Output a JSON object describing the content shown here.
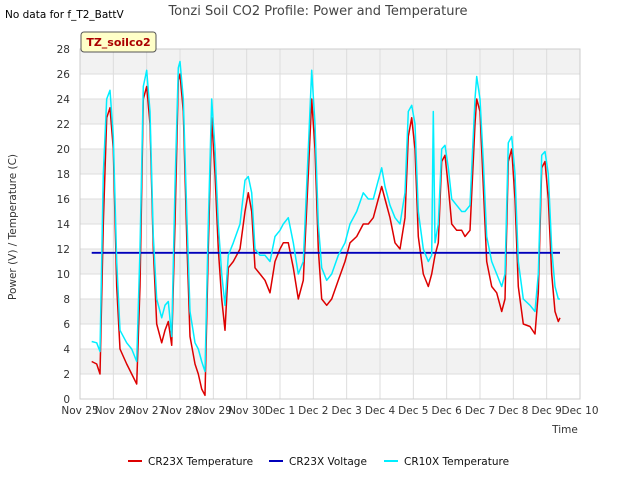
{
  "chart_data": {
    "type": "line",
    "title": "Tonzi Soil CO2 Profile: Power and Temperature",
    "no_data_note": "No data for f_T2_BattV",
    "badge": "TZ_soilco2",
    "xlabel": "Time",
    "ylabel": "Power (V) / Temperature (C)",
    "xlim": [
      0,
      15
    ],
    "ylim": [
      0,
      28
    ],
    "x_ticks": [
      {
        "x": 0,
        "label": "Nov 25"
      },
      {
        "x": 1,
        "label": "Nov 26"
      },
      {
        "x": 2,
        "label": "Nov 27"
      },
      {
        "x": 3,
        "label": "Nov 28"
      },
      {
        "x": 4,
        "label": "Nov 29"
      },
      {
        "x": 5,
        "label": "Nov 30"
      },
      {
        "x": 6,
        "label": "Dec 1"
      },
      {
        "x": 7,
        "label": "Dec 2"
      },
      {
        "x": 8,
        "label": "Dec 3"
      },
      {
        "x": 9,
        "label": "Dec 4"
      },
      {
        "x": 10,
        "label": "Dec 5"
      },
      {
        "x": 11,
        "label": "Dec 6"
      },
      {
        "x": 12,
        "label": "Dec 7"
      },
      {
        "x": 13,
        "label": "Dec 8"
      },
      {
        "x": 14,
        "label": "Dec 9"
      },
      {
        "x": 15,
        "label": "Dec 10"
      }
    ],
    "y_ticks": [
      0,
      2,
      4,
      6,
      8,
      10,
      12,
      14,
      16,
      18,
      20,
      22,
      24,
      26,
      28
    ],
    "grid": true,
    "legend_position": "bottom",
    "series": [
      {
        "name": "CR23X Temperature",
        "color": "#dd0000",
        "points": [
          [
            0.35,
            3.0
          ],
          [
            0.5,
            2.8
          ],
          [
            0.6,
            2.0
          ],
          [
            0.7,
            14.0
          ],
          [
            0.8,
            22.5
          ],
          [
            0.9,
            23.3
          ],
          [
            1.0,
            20.0
          ],
          [
            1.1,
            9.0
          ],
          [
            1.2,
            4.0
          ],
          [
            1.4,
            2.8
          ],
          [
            1.55,
            2.0
          ],
          [
            1.7,
            1.2
          ],
          [
            1.8,
            9.0
          ],
          [
            1.9,
            24.0
          ],
          [
            2.0,
            25.0
          ],
          [
            2.1,
            22.0
          ],
          [
            2.2,
            12.0
          ],
          [
            2.3,
            6.0
          ],
          [
            2.45,
            4.5
          ],
          [
            2.55,
            5.5
          ],
          [
            2.65,
            6.2
          ],
          [
            2.75,
            4.3
          ],
          [
            2.85,
            14.0
          ],
          [
            2.95,
            25.5
          ],
          [
            3.0,
            26.0
          ],
          [
            3.1,
            23.0
          ],
          [
            3.2,
            13.0
          ],
          [
            3.3,
            5.0
          ],
          [
            3.45,
            2.8
          ],
          [
            3.55,
            2.0
          ],
          [
            3.65,
            0.8
          ],
          [
            3.75,
            0.3
          ],
          [
            3.85,
            12.0
          ],
          [
            3.95,
            22.5
          ],
          [
            4.05,
            18.0
          ],
          [
            4.15,
            12.0
          ],
          [
            4.25,
            8.0
          ],
          [
            4.35,
            5.5
          ],
          [
            4.45,
            10.5
          ],
          [
            4.6,
            11.0
          ],
          [
            4.8,
            12.0
          ],
          [
            4.95,
            15.0
          ],
          [
            5.05,
            16.5
          ],
          [
            5.15,
            15.0
          ],
          [
            5.25,
            10.5
          ],
          [
            5.4,
            10.0
          ],
          [
            5.55,
            9.5
          ],
          [
            5.7,
            8.5
          ],
          [
            5.85,
            11.0
          ],
          [
            6.0,
            12.0
          ],
          [
            6.1,
            12.5
          ],
          [
            6.25,
            12.5
          ],
          [
            6.4,
            10.5
          ],
          [
            6.55,
            8.0
          ],
          [
            6.7,
            9.5
          ],
          [
            6.85,
            18.0
          ],
          [
            6.95,
            24.0
          ],
          [
            7.05,
            20.0
          ],
          [
            7.15,
            12.0
          ],
          [
            7.25,
            8.0
          ],
          [
            7.4,
            7.5
          ],
          [
            7.55,
            8.0
          ],
          [
            7.75,
            9.5
          ],
          [
            7.95,
            11.0
          ],
          [
            8.1,
            12.5
          ],
          [
            8.3,
            13.0
          ],
          [
            8.5,
            14.0
          ],
          [
            8.65,
            14.0
          ],
          [
            8.8,
            14.5
          ],
          [
            8.95,
            16.0
          ],
          [
            9.05,
            17.0
          ],
          [
            9.15,
            16.0
          ],
          [
            9.3,
            14.5
          ],
          [
            9.45,
            12.5
          ],
          [
            9.6,
            12.0
          ],
          [
            9.75,
            14.5
          ],
          [
            9.85,
            21.0
          ],
          [
            9.95,
            22.5
          ],
          [
            10.05,
            20.0
          ],
          [
            10.15,
            13.0
          ],
          [
            10.3,
            10.0
          ],
          [
            10.45,
            9.0
          ],
          [
            10.55,
            10.0
          ],
          [
            10.65,
            11.5
          ],
          [
            10.75,
            12.5
          ],
          [
            10.85,
            19.0
          ],
          [
            10.95,
            19.5
          ],
          [
            11.05,
            17.0
          ],
          [
            11.15,
            14.0
          ],
          [
            11.3,
            13.5
          ],
          [
            11.45,
            13.5
          ],
          [
            11.55,
            13.0
          ],
          [
            11.7,
            13.5
          ],
          [
            11.85,
            22.0
          ],
          [
            11.9,
            24.0
          ],
          [
            12.0,
            23.0
          ],
          [
            12.1,
            17.0
          ],
          [
            12.2,
            11.0
          ],
          [
            12.35,
            9.0
          ],
          [
            12.5,
            8.5
          ],
          [
            12.65,
            7.0
          ],
          [
            12.75,
            8.0
          ],
          [
            12.85,
            19.0
          ],
          [
            12.95,
            20.0
          ],
          [
            13.05,
            16.0
          ],
          [
            13.15,
            9.0
          ],
          [
            13.3,
            6.0
          ],
          [
            13.5,
            5.8
          ],
          [
            13.65,
            5.2
          ],
          [
            13.75,
            8.5
          ],
          [
            13.85,
            18.5
          ],
          [
            13.95,
            19.0
          ],
          [
            14.05,
            16.0
          ],
          [
            14.15,
            10.0
          ],
          [
            14.25,
            7.0
          ],
          [
            14.35,
            6.2
          ],
          [
            14.4,
            6.5
          ]
        ]
      },
      {
        "name": "CR23X Voltage",
        "color": "#0000bb",
        "points": [
          [
            0.35,
            11.7
          ],
          [
            14.4,
            11.7
          ]
        ]
      },
      {
        "name": "CR10X Temperature",
        "color": "#00eeff",
        "points": [
          [
            0.35,
            4.6
          ],
          [
            0.5,
            4.5
          ],
          [
            0.6,
            3.8
          ],
          [
            0.7,
            18.0
          ],
          [
            0.8,
            24.0
          ],
          [
            0.9,
            24.7
          ],
          [
            1.0,
            21.0
          ],
          [
            1.1,
            11.0
          ],
          [
            1.2,
            5.5
          ],
          [
            1.4,
            4.5
          ],
          [
            1.55,
            4.0
          ],
          [
            1.7,
            3.0
          ],
          [
            1.8,
            12.0
          ],
          [
            1.9,
            25.0
          ],
          [
            2.0,
            26.3
          ],
          [
            2.1,
            23.0
          ],
          [
            2.2,
            13.0
          ],
          [
            2.3,
            8.0
          ],
          [
            2.45,
            6.5
          ],
          [
            2.55,
            7.5
          ],
          [
            2.65,
            7.8
          ],
          [
            2.75,
            5.0
          ],
          [
            2.85,
            17.0
          ],
          [
            2.95,
            26.5
          ],
          [
            3.0,
            27.0
          ],
          [
            3.1,
            24.0
          ],
          [
            3.2,
            15.0
          ],
          [
            3.3,
            7.0
          ],
          [
            3.45,
            4.5
          ],
          [
            3.55,
            4.0
          ],
          [
            3.65,
            3.0
          ],
          [
            3.75,
            2.2
          ],
          [
            3.85,
            14.0
          ],
          [
            3.95,
            24.0
          ],
          [
            4.05,
            20.0
          ],
          [
            4.15,
            14.0
          ],
          [
            4.25,
            10.0
          ],
          [
            4.35,
            7.5
          ],
          [
            4.45,
            11.5
          ],
          [
            4.6,
            12.5
          ],
          [
            4.8,
            14.0
          ],
          [
            4.95,
            17.5
          ],
          [
            5.05,
            17.8
          ],
          [
            5.15,
            16.5
          ],
          [
            5.25,
            12.0
          ],
          [
            5.4,
            11.5
          ],
          [
            5.55,
            11.5
          ],
          [
            5.7,
            11.0
          ],
          [
            5.85,
            13.0
          ],
          [
            6.0,
            13.5
          ],
          [
            6.1,
            14.0
          ],
          [
            6.25,
            14.5
          ],
          [
            6.4,
            12.5
          ],
          [
            6.55,
            10.0
          ],
          [
            6.7,
            11.0
          ],
          [
            6.85,
            20.0
          ],
          [
            6.95,
            26.3
          ],
          [
            7.05,
            22.0
          ],
          [
            7.15,
            14.0
          ],
          [
            7.25,
            10.5
          ],
          [
            7.4,
            9.5
          ],
          [
            7.55,
            10.0
          ],
          [
            7.75,
            11.5
          ],
          [
            7.95,
            12.5
          ],
          [
            8.1,
            14.0
          ],
          [
            8.3,
            15.0
          ],
          [
            8.5,
            16.5
          ],
          [
            8.65,
            16.0
          ],
          [
            8.8,
            16.0
          ],
          [
            8.95,
            17.5
          ],
          [
            9.05,
            18.5
          ],
          [
            9.15,
            17.0
          ],
          [
            9.3,
            15.5
          ],
          [
            9.45,
            14.5
          ],
          [
            9.6,
            14.0
          ],
          [
            9.75,
            16.5
          ],
          [
            9.85,
            23.0
          ],
          [
            9.95,
            23.5
          ],
          [
            10.05,
            22.0
          ],
          [
            10.15,
            15.0
          ],
          [
            10.3,
            12.0
          ],
          [
            10.45,
            11.0
          ],
          [
            10.55,
            11.5
          ],
          [
            10.6,
            23.0
          ],
          [
            10.65,
            12.5
          ],
          [
            10.75,
            14.0
          ],
          [
            10.85,
            20.0
          ],
          [
            10.95,
            20.3
          ],
          [
            11.05,
            18.5
          ],
          [
            11.15,
            16.0
          ],
          [
            11.3,
            15.5
          ],
          [
            11.45,
            15.0
          ],
          [
            11.55,
            15.0
          ],
          [
            11.7,
            15.5
          ],
          [
            11.85,
            24.0
          ],
          [
            11.9,
            25.8
          ],
          [
            12.0,
            24.0
          ],
          [
            12.1,
            19.0
          ],
          [
            12.2,
            13.0
          ],
          [
            12.35,
            11.0
          ],
          [
            12.5,
            10.0
          ],
          [
            12.65,
            9.0
          ],
          [
            12.75,
            10.0
          ],
          [
            12.85,
            20.5
          ],
          [
            12.95,
            21.0
          ],
          [
            13.05,
            18.0
          ],
          [
            13.15,
            11.0
          ],
          [
            13.3,
            8.0
          ],
          [
            13.5,
            7.5
          ],
          [
            13.65,
            7.0
          ],
          [
            13.75,
            10.0
          ],
          [
            13.85,
            19.5
          ],
          [
            13.95,
            19.8
          ],
          [
            14.05,
            18.0
          ],
          [
            14.15,
            12.0
          ],
          [
            14.25,
            9.0
          ],
          [
            14.35,
            8.0
          ],
          [
            14.4,
            8.0
          ]
        ]
      }
    ]
  }
}
